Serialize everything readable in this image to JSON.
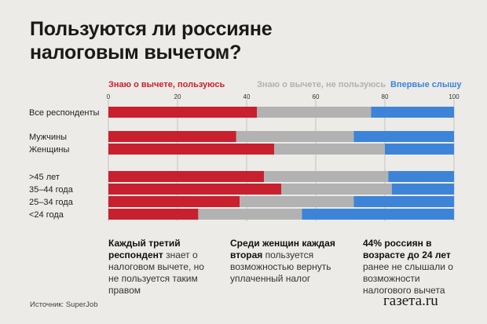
{
  "title": "Пользуются ли россияне налоговым вычетом?",
  "legend": [
    {
      "label": "Знаю о вычете, пользуюсь",
      "color": "#c8202f"
    },
    {
      "label": "Знаю о вычете, не пользуюсь",
      "color": "#b2b2b2"
    },
    {
      "label": "Впервые слышу",
      "color": "#3d84d9"
    }
  ],
  "chart_data": {
    "type": "bar",
    "orientation": "horizontal",
    "stacked": true,
    "xlim": [
      0,
      100
    ],
    "ticks": [
      0,
      20,
      40,
      60,
      80,
      100
    ],
    "grid": true,
    "categories": [
      "Все респонденты",
      "Мужчины",
      "Женщины",
      ">45 лет",
      "35–44 года",
      "25–34 года",
      "<24 года"
    ],
    "series": [
      {
        "name": "Знаю о вычете, пользуюсь",
        "color": "#c8202f",
        "values": [
          43,
          37,
          48,
          45,
          50,
          38,
          26
        ]
      },
      {
        "name": "Знаю о вычете, не пользуюсь",
        "color": "#b2b2b2",
        "values": [
          33,
          34,
          32,
          36,
          32,
          33,
          30
        ]
      },
      {
        "name": "Впервые слышу",
        "color": "#3d84d9",
        "values": [
          24,
          29,
          20,
          19,
          18,
          29,
          44
        ]
      }
    ]
  },
  "notes": [
    {
      "bold": "Каждый третий респондент",
      "text": " знает о налоговом вычете, но не пользуется таким правом"
    },
    {
      "bold": "Среди женщин каждая вторая",
      "text": " пользуется возможностью вернуть уплаченный налог"
    },
    {
      "bold": "44% россиян в возрасте до 24 лет",
      "text": " ранее не слышали о возможности налогового вычета"
    }
  ],
  "source": "Источник: SuperJob",
  "logo": "газета.ru"
}
